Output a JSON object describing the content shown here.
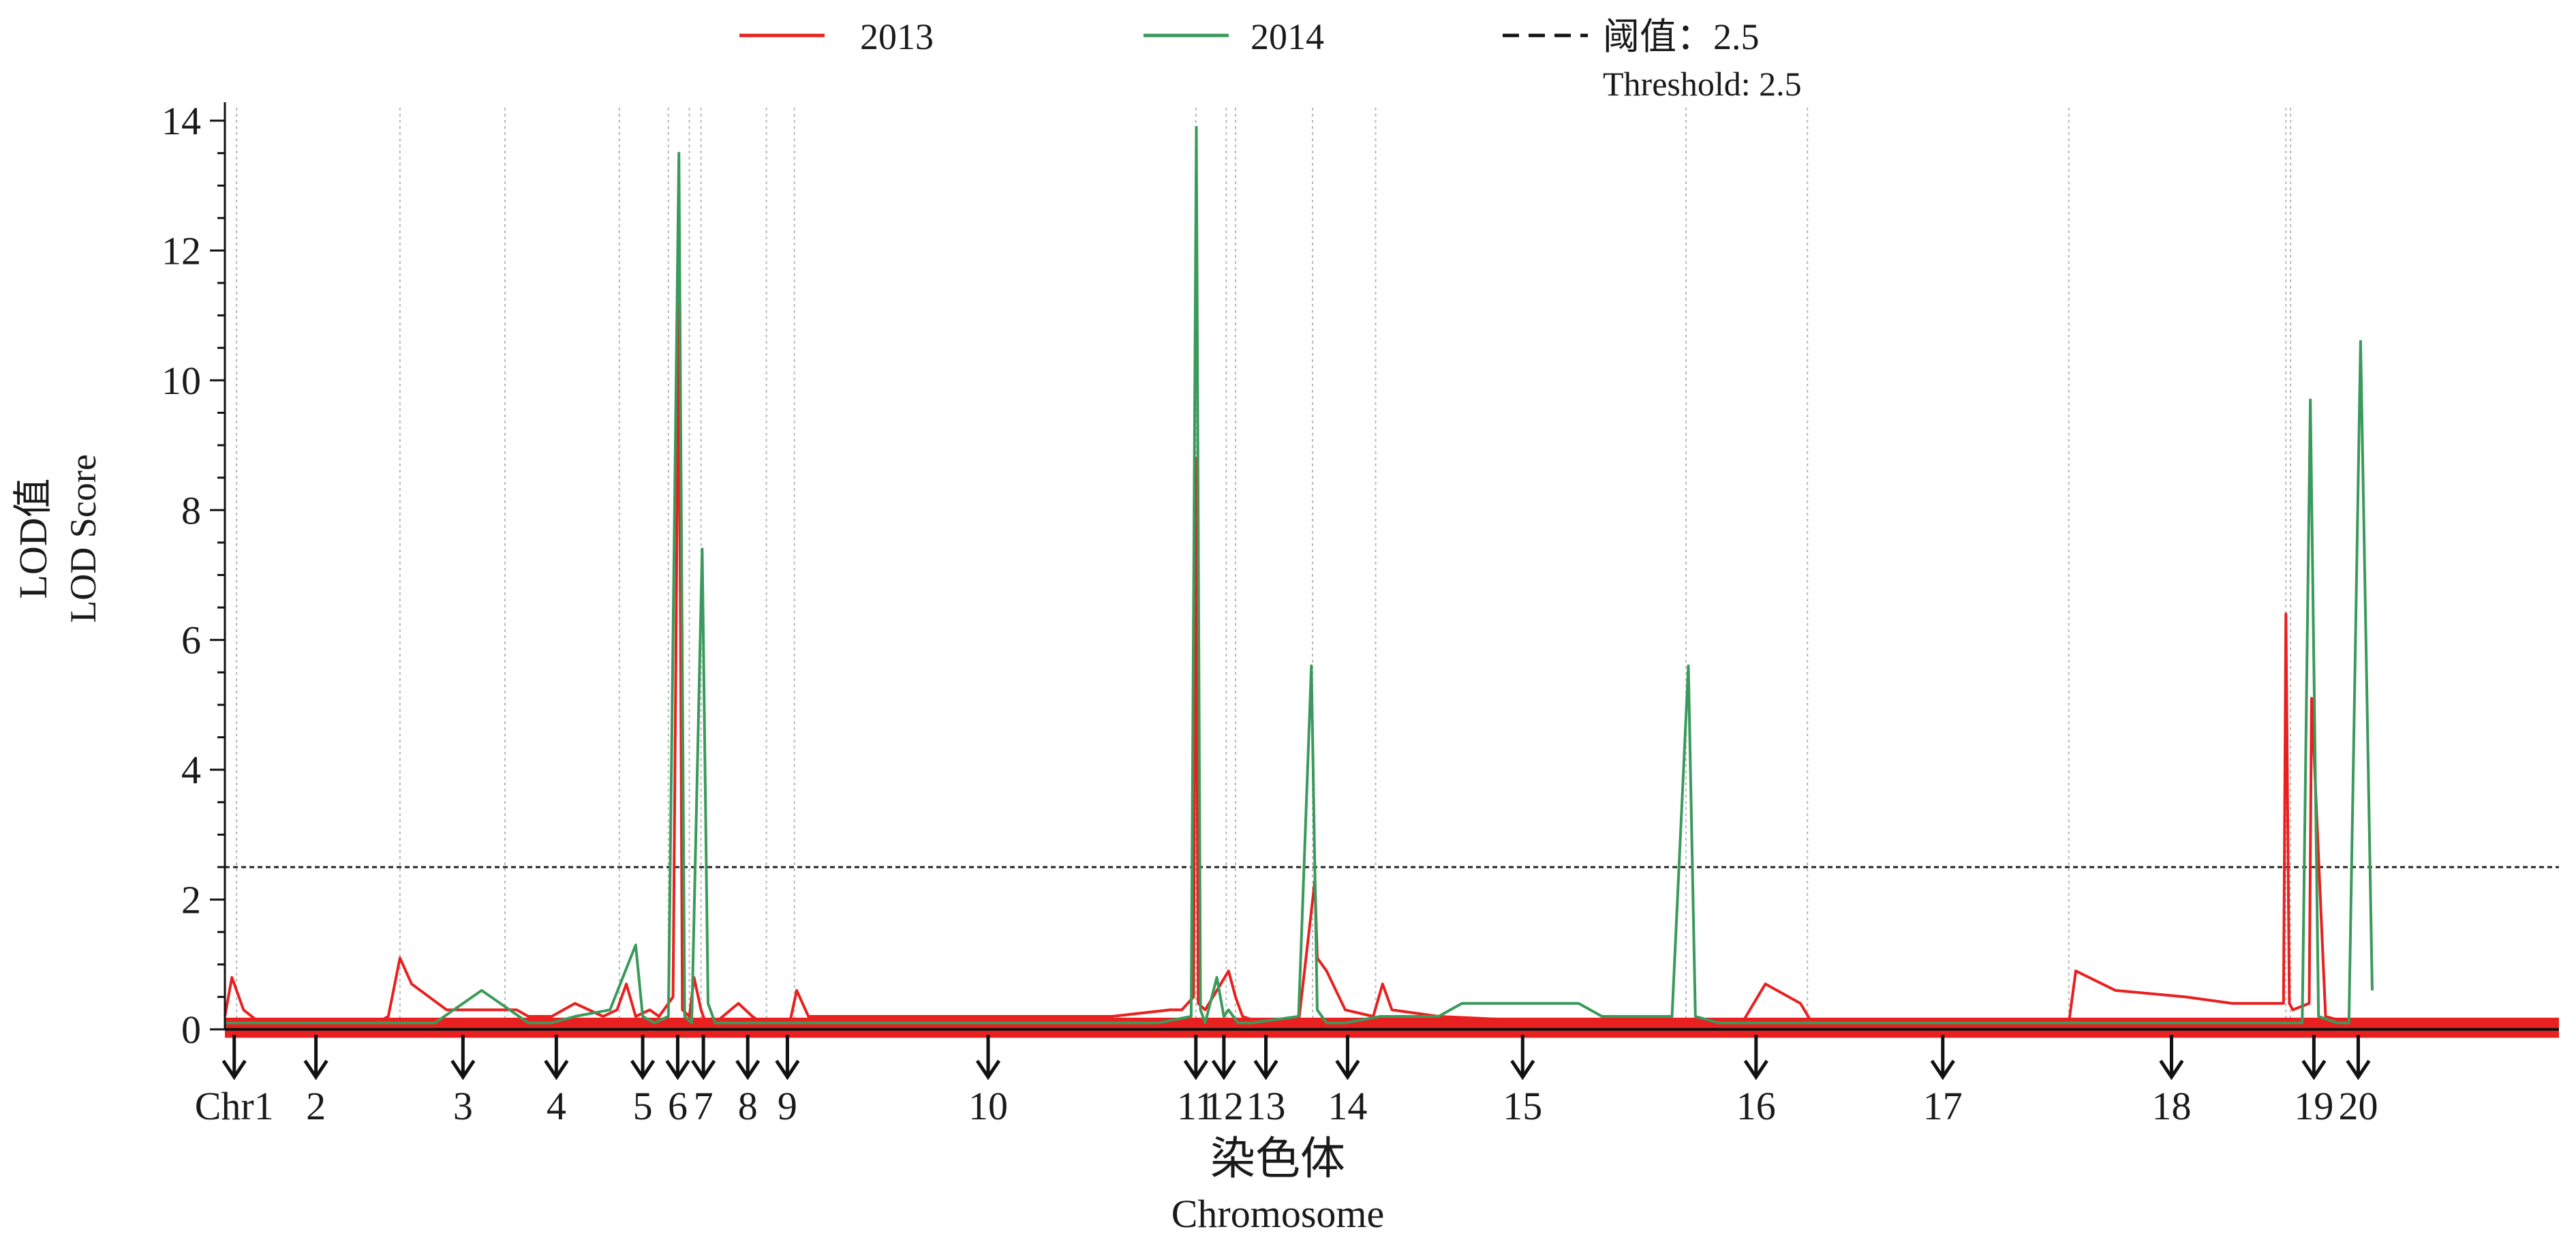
{
  "chart_data": {
    "type": "line",
    "ylabel": [
      "LOD值",
      "LOD Score"
    ],
    "xlabel": [
      "染色体",
      "Chromosome"
    ],
    "ylim": [
      0,
      14.2
    ],
    "yticks": [
      0,
      2,
      4,
      6,
      8,
      10,
      12,
      14
    ],
    "ytick_labels": [
      "0",
      "2",
      "4",
      "6",
      "8",
      "10",
      "12",
      "14"
    ],
    "xlim": [
      0,
      100
    ],
    "chromosome_boundaries": [
      0.5,
      7.5,
      12.0,
      16.9,
      19.0,
      19.9,
      20.4,
      23.2,
      24.4,
      41.6,
      42.9,
      43.3,
      46.6,
      49.3,
      62.6,
      67.8,
      79.0,
      88.3,
      88.5
    ],
    "chromosomes": [
      {
        "label": "Chr1",
        "x": 0.4
      },
      {
        "label": "2",
        "x": 3.9
      },
      {
        "label": "3",
        "x": 10.2
      },
      {
        "label": "4",
        "x": 14.2
      },
      {
        "label": "5",
        "x": 17.9
      },
      {
        "label": "6",
        "x": 19.4
      },
      {
        "label": "7",
        "x": 20.5
      },
      {
        "label": "8",
        "x": 22.4
      },
      {
        "label": "9",
        "x": 24.1
      },
      {
        "label": "10",
        "x": 32.7
      },
      {
        "label": "11",
        "x": 41.6
      },
      {
        "label": "12",
        "x": 42.8
      },
      {
        "label": "13",
        "x": 44.6
      },
      {
        "label": "14",
        "x": 48.1
      },
      {
        "label": "15",
        "x": 55.6
      },
      {
        "label": "16",
        "x": 65.6
      },
      {
        "label": "17",
        "x": 73.6
      },
      {
        "label": "18",
        "x": 83.4
      },
      {
        "label": "19",
        "x": 89.5
      },
      {
        "label": "20",
        "x": 91.4
      }
    ],
    "threshold": {
      "value": 2.5,
      "label": "阈值：2.5",
      "label2": "Threshold: 2.5"
    },
    "series": [
      {
        "name": "2013",
        "color": "#e8201f",
        "x": [
          0,
          0.3,
          0.8,
          1.5,
          3,
          5,
          6.5,
          7.0,
          7.5,
          8.0,
          9.5,
          11,
          12.5,
          13.0,
          14.0,
          15,
          16.2,
          16.8,
          17.2,
          17.6,
          18.2,
          18.6,
          19.2,
          19.45,
          19.6,
          19.9,
          20.1,
          20.4,
          20.6,
          21.0,
          22.0,
          22.6,
          23.0,
          24.2,
          24.5,
          25.0,
          27,
          30,
          33,
          36,
          38,
          40.5,
          41.0,
          41.5,
          41.6,
          41.7,
          42.0,
          43.0,
          43.3,
          43.6,
          44.4,
          46.0,
          46.7,
          46.8,
          47.2,
          48.0,
          49.2,
          49.6,
          50.0,
          52,
          58,
          65,
          66,
          67,
          67.5,
          68,
          71,
          72,
          74,
          77,
          79.0,
          79.3,
          81,
          84,
          86,
          88,
          88.2,
          88.3,
          88.45,
          88.6,
          89.3,
          89.4,
          90.0,
          91.0,
          91.5,
          92
        ],
        "y": [
          0.2,
          0.8,
          0.3,
          0.1,
          0.1,
          0.1,
          0.1,
          0.2,
          1.1,
          0.7,
          0.3,
          0.3,
          0.3,
          0.2,
          0.2,
          0.4,
          0.2,
          0.3,
          0.7,
          0.2,
          0.3,
          0.2,
          0.5,
          11.2,
          0.3,
          0.2,
          0.8,
          0.3,
          0.1,
          0.1,
          0.4,
          0.2,
          0.1,
          0.1,
          0.6,
          0.2,
          0.2,
          0.2,
          0.2,
          0.2,
          0.2,
          0.3,
          0.3,
          0.5,
          8.8,
          0.4,
          0.3,
          0.9,
          0.5,
          0.2,
          0.1,
          0.1,
          2.3,
          1.1,
          0.9,
          0.3,
          0.2,
          0.7,
          0.3,
          0.2,
          0.1,
          0.1,
          0.7,
          0.5,
          0.4,
          0.1,
          0.1,
          0.1,
          0.1,
          0.1,
          0.1,
          0.9,
          0.6,
          0.5,
          0.4,
          0.4,
          0.4,
          6.4,
          0.4,
          0.3,
          0.4,
          5.1,
          0.2,
          0.1,
          0.1,
          0.1
        ]
      },
      {
        "name": "2014",
        "color": "#3a9a5b",
        "x": [
          0,
          1,
          3,
          5,
          7,
          9,
          11,
          13,
          14,
          15,
          16.5,
          17.6,
          17.9,
          18.4,
          19.0,
          19.45,
          19.7,
          20.0,
          20.45,
          20.7,
          21,
          22.5,
          24,
          25,
          30,
          35,
          40,
          41.4,
          41.62,
          41.8,
          42.0,
          42.5,
          42.8,
          43.0,
          43.4,
          44,
          46.0,
          46.55,
          46.8,
          47.2,
          48,
          49.5,
          52,
          53,
          54,
          58,
          59,
          62,
          62.7,
          63,
          64,
          68,
          72,
          78,
          80,
          85,
          89.0,
          89.35,
          89.7,
          90.5,
          91.0,
          91.5,
          92
        ],
        "y": [
          0.1,
          0.1,
          0.1,
          0.1,
          0.1,
          0.1,
          0.6,
          0.1,
          0.1,
          0.2,
          0.3,
          1.3,
          0.2,
          0.1,
          0.2,
          13.5,
          0.2,
          0.1,
          7.4,
          0.4,
          0.1,
          0.1,
          0.1,
          0.1,
          0.1,
          0.1,
          0.1,
          0.2,
          13.9,
          0.3,
          0.1,
          0.8,
          0.2,
          0.3,
          0.1,
          0.1,
          0.2,
          5.6,
          0.3,
          0.1,
          0.1,
          0.2,
          0.2,
          0.4,
          0.4,
          0.4,
          0.2,
          0.2,
          5.6,
          0.2,
          0.1,
          0.1,
          0.1,
          0.1,
          0.1,
          0.1,
          0.1,
          9.7,
          0.2,
          0.1,
          0.1,
          10.6,
          0.6
        ]
      }
    ],
    "legend": {
      "position": "top",
      "entries": [
        "2013",
        "2014",
        "阈值：2.5"
      ]
    }
  }
}
